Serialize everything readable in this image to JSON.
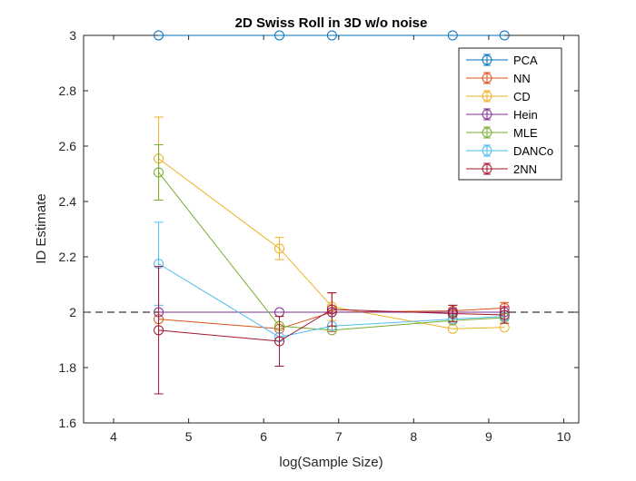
{
  "chart_data": {
    "type": "line",
    "title": "2D Swiss Roll in 3D w/o noise",
    "xlabel": "log(Sample Size)",
    "ylabel": "ID Estimate",
    "xlim": [
      3.6,
      10.2
    ],
    "ylim": [
      1.6,
      3.0
    ],
    "xticks": [
      4,
      5,
      6,
      7,
      8,
      9,
      10
    ],
    "yticks": [
      1.6,
      1.8,
      2.0,
      2.2,
      2.4,
      2.6,
      2.8,
      3.0
    ],
    "xtick_labels": [
      "4",
      "5",
      "6",
      "7",
      "8",
      "9",
      "10"
    ],
    "ytick_labels": [
      "1.6",
      "1.8",
      "2",
      "2.2",
      "2.4",
      "2.6",
      "2.8",
      "3"
    ],
    "grid": false,
    "legend_position": "top-right",
    "reference_line": {
      "y": 2,
      "style": "dashed",
      "color": "#000000"
    },
    "x": [
      4.6,
      6.21,
      6.91,
      8.52,
      9.21
    ],
    "series": [
      {
        "name": "PCA",
        "color": "#0072BD",
        "values": [
          3.0,
          3.0,
          3.0,
          3.0,
          3.0
        ],
        "err": [
          0,
          0,
          0,
          0,
          0
        ]
      },
      {
        "name": "NN",
        "color": "#D95319",
        "values": [
          1.975,
          1.94,
          2.0,
          2.005,
          2.015
        ],
        "err": [
          0.0,
          0.0,
          0.07,
          0.02,
          0.02
        ]
      },
      {
        "name": "CD",
        "color": "#EDB120",
        "values": [
          2.555,
          2.23,
          2.02,
          1.94,
          1.945
        ],
        "err": [
          0.15,
          0.04,
          0.05,
          0.0,
          0.0
        ]
      },
      {
        "name": "Hein",
        "color": "#7E2F8E",
        "values": [
          2.0,
          2.0,
          2.0,
          2.0,
          2.0
        ],
        "err": [
          0.0,
          0.0,
          0.0,
          0.0,
          0.0
        ]
      },
      {
        "name": "MLE",
        "color": "#77AC30",
        "values": [
          2.505,
          1.95,
          1.935,
          1.97,
          1.98
        ],
        "err": [
          0.1,
          0.0,
          0.0,
          0.0,
          0.0
        ]
      },
      {
        "name": "DANCo",
        "color": "#4DBEEE",
        "values": [
          2.175,
          1.91,
          1.95,
          1.975,
          1.985
        ],
        "err": [
          0.15,
          0.0,
          0.0,
          0.0,
          0.0
        ]
      },
      {
        "name": "2NN",
        "color": "#A2142F",
        "values": [
          1.935,
          1.895,
          2.01,
          1.995,
          1.99
        ],
        "err": [
          0.23,
          0.09,
          0.06,
          0.03,
          0.03
        ]
      }
    ]
  }
}
